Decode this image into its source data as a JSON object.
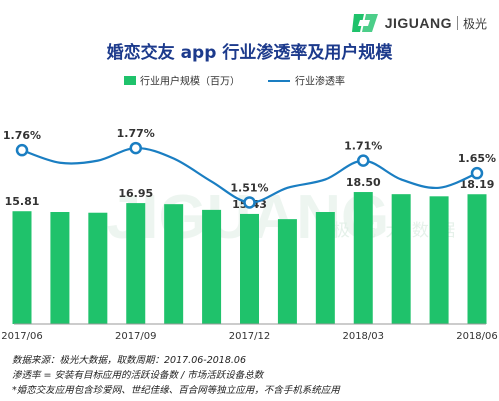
{
  "brand": {
    "name": "JIGUANG",
    "cn_name": "极光",
    "colors": {
      "green": "#1fc26b",
      "dark": "#3a3a3a"
    }
  },
  "watermark": {
    "en": "JIGUANG",
    "cn": "极 光 大 数 据"
  },
  "footer": {
    "source": "数据来源：极光大数据，取数周期：2017.06-2018.06",
    "definition": "渗透率 = 安装有目标应用的活跃设备数 / 市场活跃设备总数",
    "note": "*婚恋交友应用包含珍爱网、世纪佳缘、百合网等独立应用，不含手机系统应用"
  },
  "chart_data": {
    "type": "bar+line",
    "title": "婚恋交友 app 行业渗透率及用户规模",
    "legend": [
      "行业用户规模（百万）",
      "行业渗透率"
    ],
    "legend_position": "top-center",
    "grid": false,
    "x": [
      "2017/06",
      "2017/07",
      "2017/08",
      "2017/09",
      "2017/10",
      "2017/11",
      "2017/12",
      "2018/01",
      "2018/02",
      "2018/03",
      "2018/04",
      "2018/05",
      "2018/06"
    ],
    "x_tick_labels": [
      "2017/06",
      "2017/09",
      "2017/12",
      "2018/03",
      "2018/06"
    ],
    "series": [
      {
        "name": "行业用户规模（百万）",
        "type": "bar",
        "color": "#1fc26b",
        "values": [
          15.81,
          15.7,
          15.6,
          16.95,
          16.8,
          16.0,
          15.43,
          14.7,
          15.7,
          18.5,
          18.2,
          17.9,
          18.19
        ],
        "labeled": [
          15.81,
          null,
          null,
          16.95,
          null,
          null,
          15.43,
          null,
          null,
          18.5,
          null,
          null,
          18.19
        ]
      },
      {
        "name": "行业渗透率",
        "type": "line",
        "color": "#1a7ec2",
        "unit": "%",
        "values": [
          1.76,
          1.7,
          1.71,
          1.77,
          1.72,
          1.61,
          1.51,
          1.58,
          1.62,
          1.71,
          1.62,
          1.58,
          1.65
        ],
        "labeled": [
          "1.76%",
          null,
          null,
          "1.77%",
          null,
          null,
          "1.51%",
          null,
          null,
          "1.71%",
          null,
          null,
          "1.65%"
        ]
      }
    ],
    "bar_axis_range": [
      0,
      30
    ],
    "line_axis_range": [
      0.9,
      2.0
    ]
  }
}
